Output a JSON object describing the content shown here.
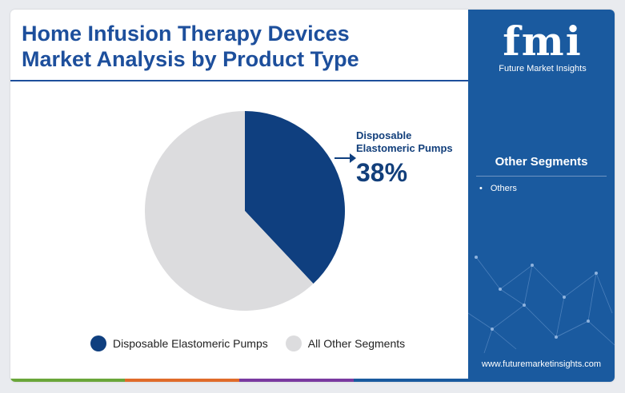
{
  "title_lines": [
    "Home Infusion Therapy Devices",
    "Market Analysis by Product Type"
  ],
  "colors": {
    "title": "#1d4f9c",
    "primary_slice": "#0f3f7f",
    "other_slice": "#dcdcde",
    "sidebar": "#1a5a9f",
    "bottom_bar": [
      "#6aa63a",
      "#e06b2a",
      "#7a3aa0",
      "#1a5a9f"
    ]
  },
  "chart_data": {
    "type": "pie",
    "slices": [
      {
        "label": "Disposable Elastomeric Pumps",
        "value": 38,
        "color": "#0f3f7f"
      },
      {
        "label": "All Other Segments",
        "value": 62,
        "color": "#dcdcde"
      }
    ],
    "callout": {
      "label_lines": [
        "Disposable",
        "Elastomeric Pumps"
      ],
      "value": "38%"
    },
    "legend": [
      "Disposable Elastomeric Pumps",
      "All Other Segments"
    ]
  },
  "sidebar": {
    "logo": "fmi",
    "logo_sub": "Future Market Insights",
    "heading": "Other Segments",
    "items": [
      "Others"
    ],
    "website": "www.futuremarketinsights.com"
  }
}
